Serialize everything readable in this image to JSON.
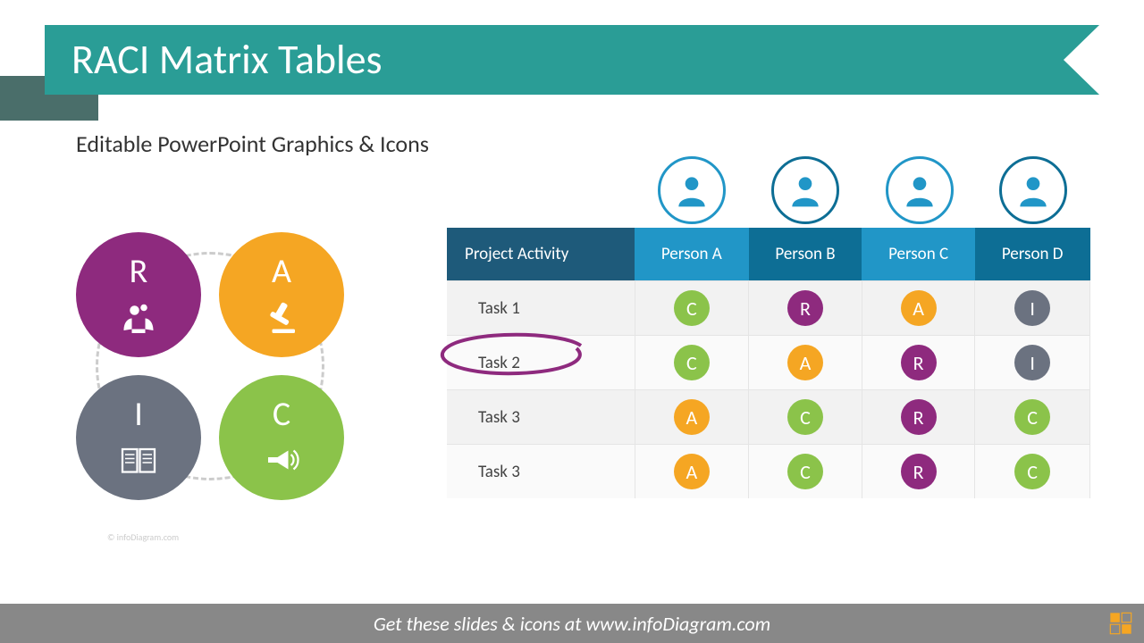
{
  "title": "RACI Matrix Tables",
  "subtitle": "Editable PowerPoint Graphics & Icons",
  "colors": {
    "banner": "#2a9d96",
    "banner_shadow": "#4a6e6a",
    "R": "#8e2a7e",
    "A": "#f5a623",
    "I": "#6b7280",
    "C": "#8bc34a",
    "header_activity": "#1e5a7a",
    "header_person_light": "#2196c7",
    "header_person_dark": "#0d6e95",
    "footer": "#888888",
    "footer_accent": "#f5a623",
    "avatar_ring": [
      "#2196c7",
      "#0d6e95",
      "#2196c7",
      "#0d6e95"
    ]
  },
  "quad": [
    {
      "letter": "R",
      "color": "R",
      "icon": "hands-gears"
    },
    {
      "letter": "A",
      "color": "A",
      "icon": "gavel"
    },
    {
      "letter": "I",
      "color": "I",
      "icon": "book"
    },
    {
      "letter": "C",
      "color": "C",
      "icon": "megaphone"
    }
  ],
  "table": {
    "header_activity": "Project Activity",
    "persons": [
      "Person A",
      "Person B",
      "Person C",
      "Person D"
    ],
    "header_colors": [
      "header_person_light",
      "header_person_dark",
      "header_person_light",
      "header_person_dark"
    ],
    "rows": [
      {
        "label": "Task 1",
        "cells": [
          "C",
          "R",
          "A",
          "I"
        ]
      },
      {
        "label": "Task 2",
        "cells": [
          "C",
          "A",
          "R",
          "I"
        ],
        "highlighted": true
      },
      {
        "label": "Task 3",
        "cells": [
          "A",
          "C",
          "R",
          "C"
        ]
      },
      {
        "label": "Task 3",
        "cells": [
          "A",
          "C",
          "R",
          "C"
        ]
      }
    ]
  },
  "footer": "Get these slides & icons at www.infoDiagram.com",
  "watermark": "© infoDiagram.com"
}
